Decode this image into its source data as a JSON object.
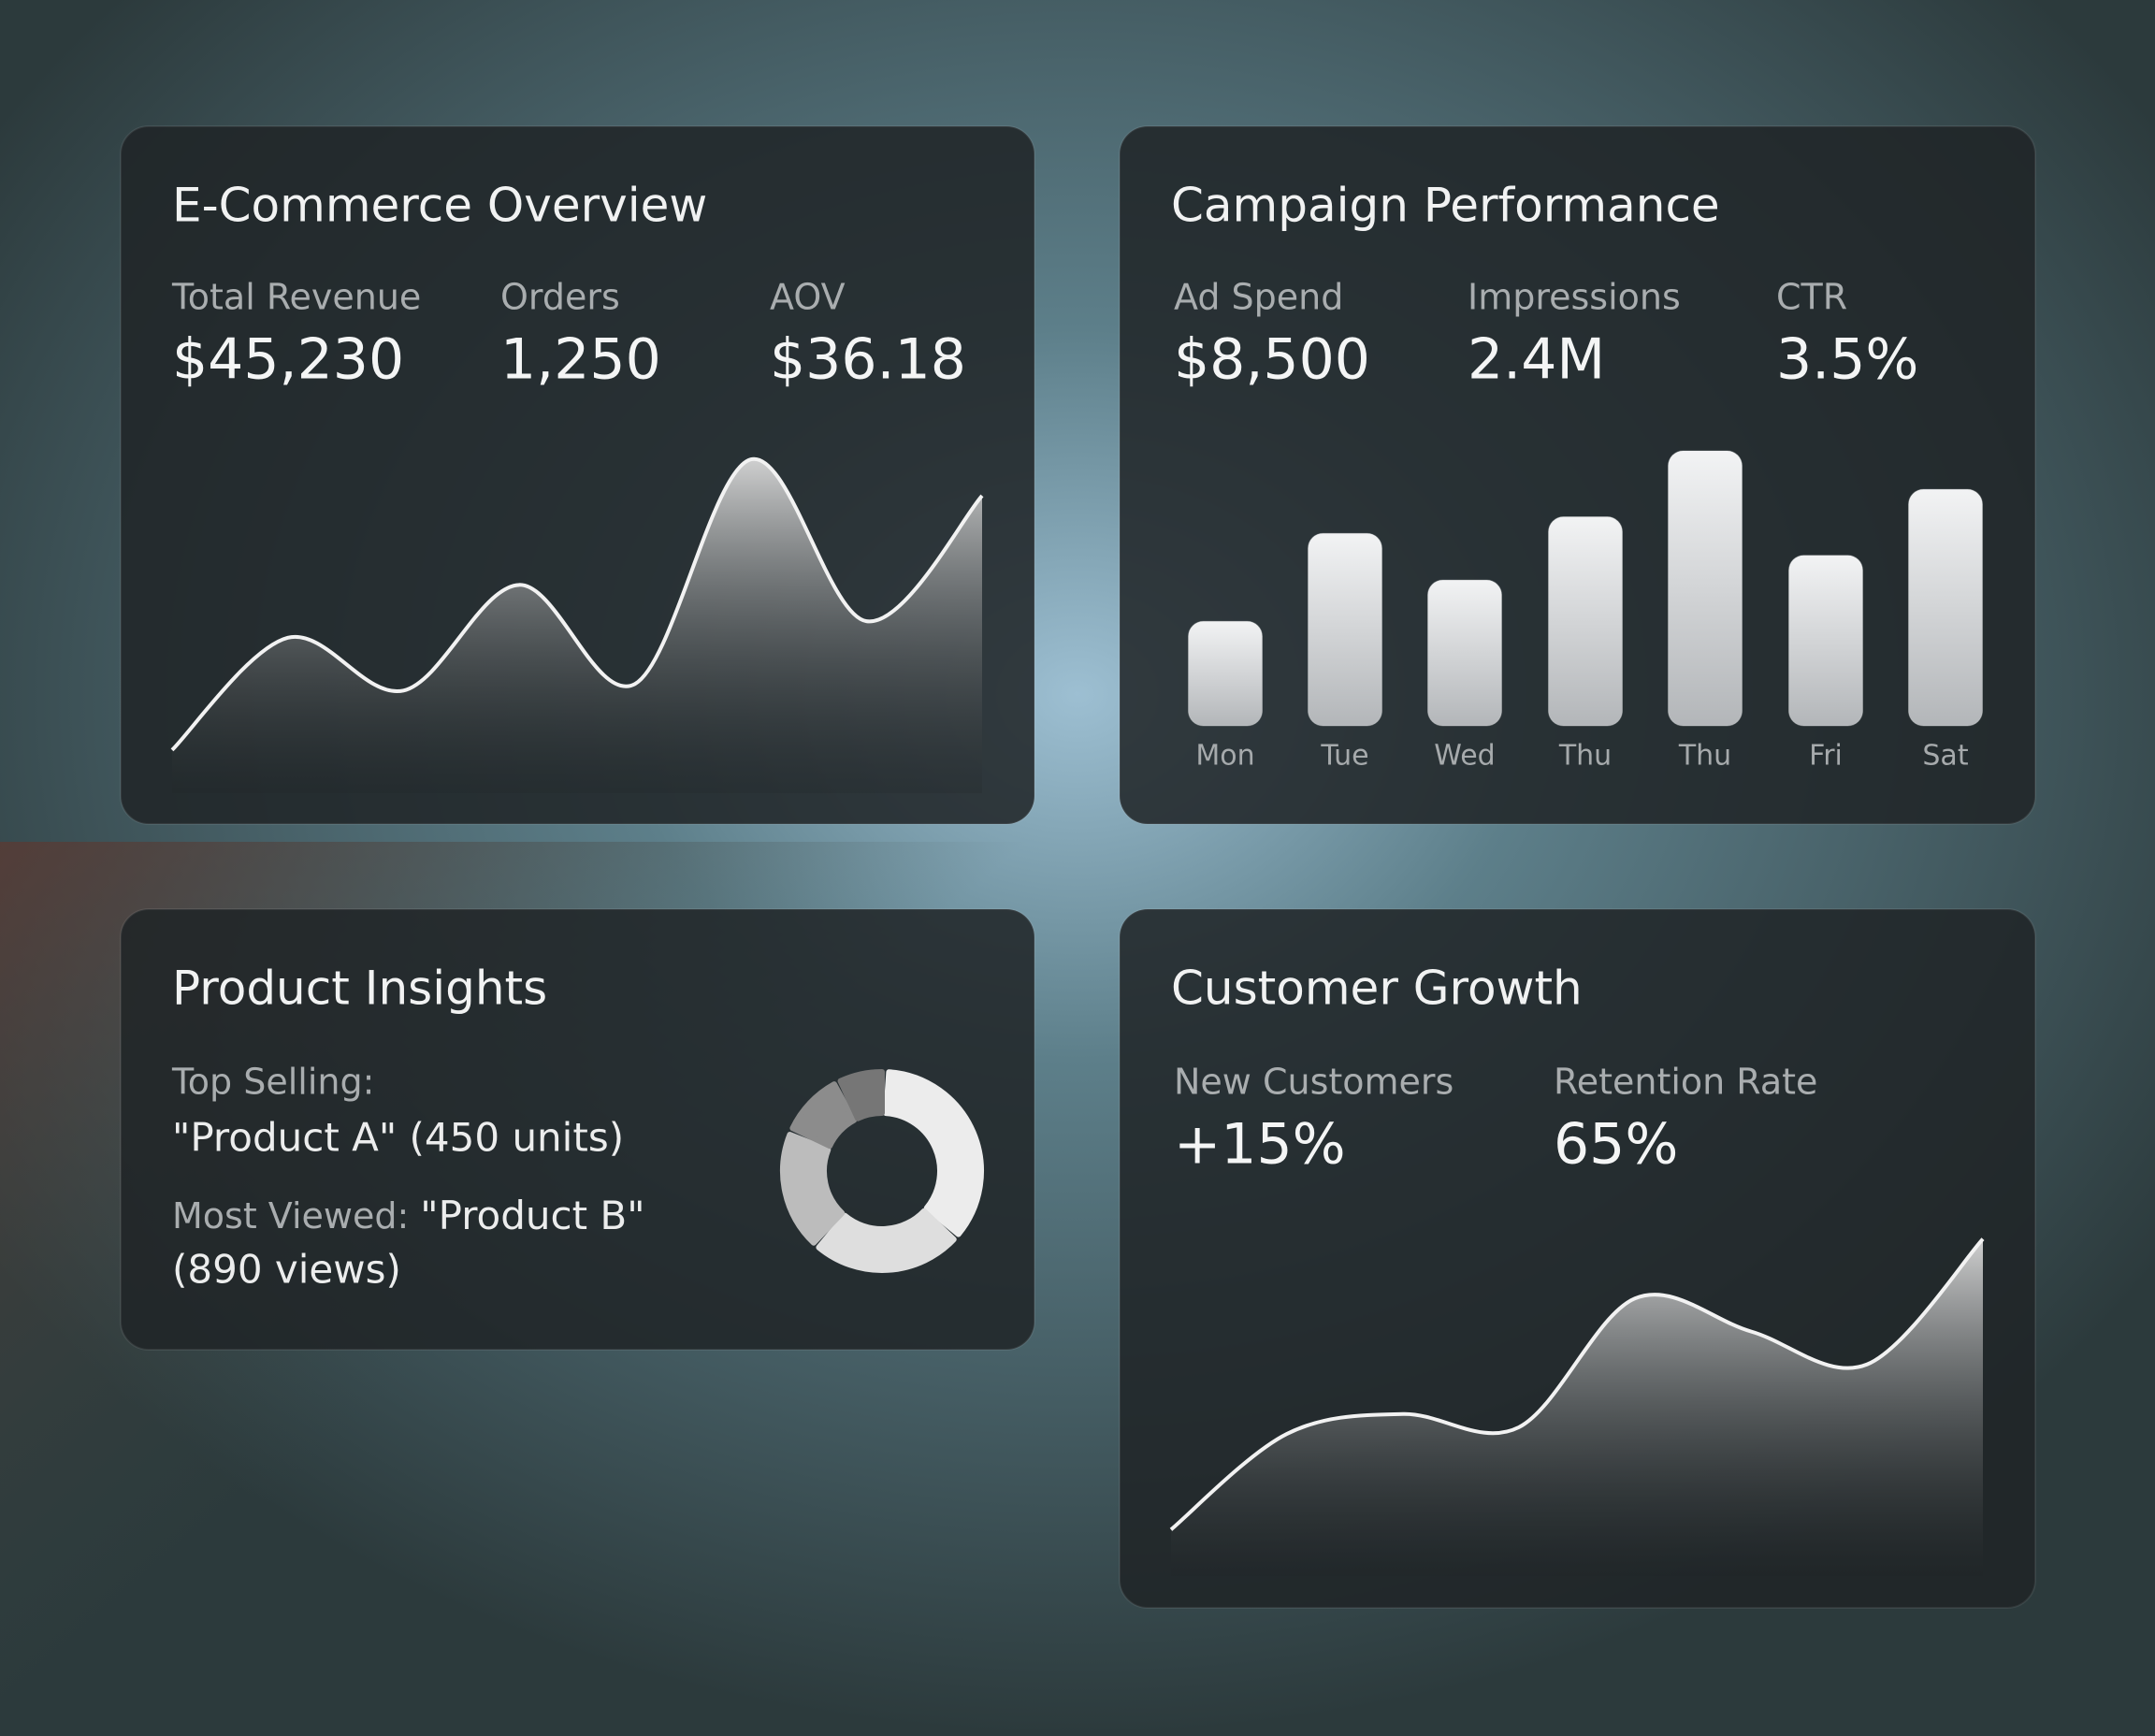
{
  "panels": [
    {
      "title": "E-Commerce Overview",
      "metrics": [
        {
          "label": "Total Revenue",
          "value": "$45,230"
        },
        {
          "label": "Orders",
          "value": "1,250"
        },
        {
          "label": "AOV",
          "value": "$36.18"
        }
      ],
      "chart": {
        "type": "area",
        "values": [
          6,
          40,
          24,
          56,
          26,
          94,
          45,
          83
        ],
        "ylim": [
          0,
          100
        ],
        "color": "#f2f2f2"
      }
    },
    {
      "title": "Campaign Performance",
      "metrics": [
        {
          "label": "Ad Spend",
          "value": "$8,500"
        },
        {
          "label": "Impressions",
          "value": "2.4M"
        },
        {
          "label": "CTR",
          "value": "3.5%"
        }
      ],
      "chart": {
        "type": "bar",
        "categories": [
          "Mon",
          "Tue",
          "Wed",
          "Thu",
          "Thu",
          "Fri",
          "Sat"
        ],
        "values": [
          38,
          70,
          53,
          76,
          100,
          62,
          86
        ],
        "ylim": [
          0,
          100
        ],
        "color": "#e2e3e5"
      }
    },
    {
      "title": "Product Insights",
      "top_selling_label": "Top Selling:",
      "top_selling_value": "\"Product A\" (450 units)",
      "most_viewed_label": "Most Viewed:",
      "most_viewed_value": "\"Product B\"",
      "most_viewed_detail": "(890 views)",
      "chart": {
        "type": "donut",
        "values": [
          36,
          25,
          20,
          11,
          8
        ],
        "colors": [
          "#ececec",
          "#dedede",
          "#bcbcbc",
          "#8c8c8c",
          "#767676"
        ]
      }
    },
    {
      "title": "Customer Growth",
      "metrics": [
        {
          "label": "New Customers",
          "value": "+15%"
        },
        {
          "label": "Retention Rate",
          "value": "65%"
        }
      ],
      "chart": {
        "type": "area",
        "values": [
          7,
          36,
          42,
          38,
          77,
          67,
          57,
          95
        ],
        "ylim": [
          0,
          100
        ],
        "color": "#f2f2f2"
      }
    }
  ]
}
